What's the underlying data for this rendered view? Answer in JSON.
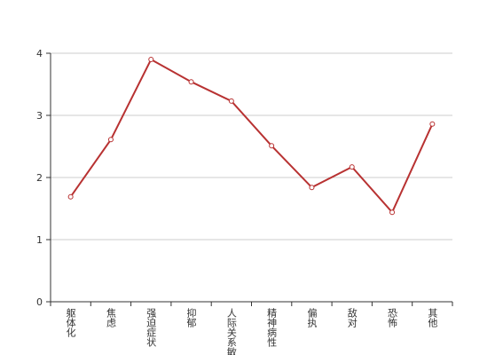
{
  "chart_data": {
    "type": "line",
    "categories": [
      "躯体化",
      "焦虑",
      "强迫症状",
      "抑郁",
      "人际关系敏感",
      "精神病性",
      "偏执",
      "敌对",
      "恐怖",
      "其他"
    ],
    "values": [
      1.69,
      2.61,
      3.9,
      3.54,
      3.23,
      2.51,
      1.84,
      2.17,
      1.44,
      2.86
    ],
    "color": "#b83232",
    "ylim": [
      0,
      4
    ],
    "yticks": [
      0,
      1,
      2,
      3,
      4
    ],
    "grid": true
  }
}
